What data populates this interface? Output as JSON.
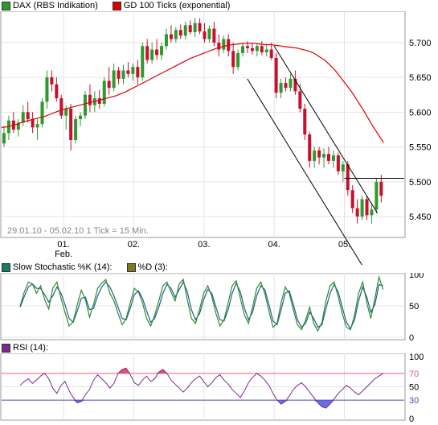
{
  "colors": {
    "up": "#2e9a2e",
    "down": "#c8102e",
    "gd100": "#dd0000",
    "stoch_k": "#2e8b2e",
    "stoch_d": "#1f5f8b",
    "rsi": "#7a2a8a",
    "rsi_upper": "#e06070",
    "rsi_lower": "#4a4ab0",
    "rsi_fill_hi": "#e0305a",
    "rsi_fill_lo": "#5050e0",
    "stoch_k_swatch": "#1a7a6a",
    "stoch_d_swatch": "#7a7a20",
    "rsi_swatch": "#7a2a8a",
    "dax_swatch": "#2e9a2e",
    "gd_swatch": "#dd0000"
  },
  "legend_main": [
    {
      "label": "DAX (RBS Indikation)",
      "color_key": "dax_swatch"
    },
    {
      "label": "GD 100 Ticks (exponential)",
      "color_key": "gd_swatch"
    }
  ],
  "legend_stoch": [
    {
      "label": "Slow Stochastic %K (14):",
      "color_key": "stoch_k_swatch"
    },
    {
      "label": "%D (3):",
      "color_key": "stoch_d_swatch"
    }
  ],
  "legend_rsi": [
    {
      "label": "RSI (14):",
      "color_key": "rsi_swatch"
    }
  ],
  "info_text": "29.01.10 - 05.02.10  1 Tick = 15 Min.",
  "x_labels": [
    {
      "label": "01.",
      "sub": "Feb.",
      "t": 30
    },
    {
      "label": "02.",
      "sub": "",
      "t": 64
    },
    {
      "label": "03.",
      "sub": "",
      "t": 98
    },
    {
      "label": "04.",
      "sub": "",
      "t": 132
    },
    {
      "label": "05.",
      "sub": "",
      "t": 166
    }
  ],
  "chart_data": [
    {
      "type": "candlestick",
      "title": "DAX (RBS Indikation)",
      "series": [
        {
          "name": "DAX (RBS Indikation)",
          "values": [
            [
              5555,
              5580,
              5550,
              5570
            ],
            [
              5570,
              5595,
              5560,
              5588
            ],
            [
              5588,
              5600,
              5570,
              5575
            ],
            [
              5575,
              5590,
              5565,
              5585
            ],
            [
              5585,
              5610,
              5580,
              5600
            ],
            [
              5600,
              5615,
              5585,
              5590
            ],
            [
              5590,
              5600,
              5570,
              5578
            ],
            [
              5578,
              5590,
              5560,
              5583
            ],
            [
              5583,
              5620,
              5578,
              5615
            ],
            [
              5615,
              5660,
              5605,
              5650
            ],
            [
              5650,
              5660,
              5630,
              5640
            ],
            [
              5640,
              5650,
              5615,
              5620
            ],
            [
              5620,
              5625,
              5590,
              5595
            ],
            [
              5595,
              5610,
              5575,
              5605
            ],
            [
              5605,
              5612,
              5545,
              5560
            ],
            [
              5560,
              5595,
              5555,
              5590
            ],
            [
              5590,
              5600,
              5580,
              5595
            ],
            [
              5595,
              5630,
              5590,
              5625
            ],
            [
              5625,
              5640,
              5600,
              5610
            ],
            [
              5610,
              5630,
              5600,
              5620
            ],
            [
              5620,
              5632,
              5605,
              5612
            ],
            [
              5612,
              5650,
              5608,
              5645
            ],
            [
              5645,
              5665,
              5625,
              5635
            ],
            [
              5635,
              5670,
              5630,
              5660
            ],
            [
              5660,
              5665,
              5640,
              5648
            ],
            [
              5648,
              5668,
              5640,
              5660
            ],
            [
              5660,
              5672,
              5650,
              5655
            ],
            [
              5655,
              5670,
              5645,
              5665
            ],
            [
              5665,
              5675,
              5640,
              5650
            ],
            [
              5650,
              5700,
              5645,
              5695
            ],
            [
              5695,
              5705,
              5670,
              5675
            ],
            [
              5675,
              5700,
              5670,
              5690
            ],
            [
              5690,
              5705,
              5675,
              5682
            ],
            [
              5682,
              5700,
              5675,
              5695
            ],
            [
              5695,
              5720,
              5690,
              5712
            ],
            [
              5712,
              5725,
              5700,
              5705
            ],
            [
              5705,
              5722,
              5700,
              5718
            ],
            [
              5718,
              5726,
              5705,
              5710
            ],
            [
              5710,
              5730,
              5705,
              5725
            ],
            [
              5725,
              5732,
              5712,
              5715
            ],
            [
              5715,
              5735,
              5708,
              5728
            ],
            [
              5728,
              5735,
              5712,
              5716
            ],
            [
              5716,
              5728,
              5700,
              5705
            ],
            [
              5705,
              5725,
              5700,
              5720
            ],
            [
              5720,
              5730,
              5695,
              5700
            ],
            [
              5700,
              5712,
              5680,
              5690
            ],
            [
              5690,
              5710,
              5685,
              5705
            ],
            [
              5705,
              5712,
              5680,
              5688
            ],
            [
              5688,
              5700,
              5655,
              5665
            ],
            [
              5665,
              5690,
              5660,
              5685
            ],
            [
              5685,
              5700,
              5680,
              5695
            ],
            [
              5695,
              5702,
              5685,
              5692
            ],
            [
              5692,
              5700,
              5683,
              5688
            ],
            [
              5688,
              5698,
              5680,
              5695
            ],
            [
              5695,
              5702,
              5682,
              5686
            ],
            [
              5686,
              5698,
              5680,
              5690
            ],
            [
              5690,
              5700,
              5675,
              5678
            ],
            [
              5678,
              5685,
              5620,
              5628
            ],
            [
              5628,
              5648,
              5620,
              5642
            ],
            [
              5642,
              5650,
              5630,
              5635
            ],
            [
              5635,
              5655,
              5630,
              5648
            ],
            [
              5648,
              5660,
              5625,
              5630
            ],
            [
              5630,
              5640,
              5600,
              5605
            ],
            [
              5605,
              5612,
              5560,
              5568
            ],
            [
              5568,
              5572,
              5520,
              5530
            ],
            [
              5530,
              5550,
              5520,
              5545
            ],
            [
              5545,
              5550,
              5525,
              5535
            ],
            [
              5535,
              5548,
              5520,
              5540
            ],
            [
              5540,
              5550,
              5525,
              5530
            ],
            [
              5530,
              5545,
              5520,
              5538
            ],
            [
              5538,
              5542,
              5510,
              5515
            ],
            [
              5515,
              5530,
              5500,
              5525
            ],
            [
              5525,
              5530,
              5480,
              5488
            ],
            [
              5488,
              5495,
              5455,
              5462
            ],
            [
              5462,
              5475,
              5440,
              5450
            ],
            [
              5450,
              5480,
              5445,
              5475
            ],
            [
              5475,
              5480,
              5445,
              5452
            ],
            [
              5452,
              5470,
              5440,
              5460
            ],
            [
              5460,
              5505,
              5455,
              5500
            ],
            [
              5500,
              5510,
              5470,
              5480
            ]
          ]
        },
        {
          "name": "GD 100 Ticks (exponential)",
          "values": [
            5578,
            5579,
            5581,
            5583,
            5586,
            5588,
            5590,
            5592,
            5594,
            5597,
            5600,
            5603,
            5605,
            5607,
            5609,
            5611,
            5613,
            5615,
            5617,
            5619,
            5621,
            5623,
            5626,
            5629,
            5633,
            5637,
            5641,
            5645,
            5649,
            5653,
            5657,
            5661,
            5665,
            5669,
            5673,
            5677,
            5680,
            5683,
            5686,
            5689,
            5692,
            5694,
            5696,
            5697,
            5698,
            5699,
            5699,
            5699,
            5698,
            5697,
            5697,
            5696,
            5695,
            5694,
            5693,
            5692,
            5690,
            5688,
            5685,
            5680,
            5675,
            5668,
            5660,
            5650,
            5640,
            5630,
            5618,
            5606,
            5593,
            5580,
            5568,
            5556
          ]
        }
      ],
      "ylim": [
        5420,
        5745
      ],
      "y_ticks": [
        "5.700",
        "5.650",
        "5.600",
        "5.550",
        "5.500",
        "5.450"
      ],
      "y_tick_values": [
        5700,
        5650,
        5600,
        5550,
        5500,
        5450
      ],
      "horizontal_line": 5505,
      "channel_upper": [
        [
          132,
          5695
        ],
        [
          182,
          5455
        ]
      ],
      "channel_lower": [
        [
          119,
          5648
        ],
        [
          185,
          5330
        ]
      ]
    },
    {
      "type": "line",
      "title": "Slow Stochastic %K (14)",
      "series": [
        {
          "name": "Slow Stochastic %K (14):",
          "values": [
            50,
            72,
            88,
            85,
            70,
            82,
            60,
            45,
            78,
            88,
            62,
            40,
            18,
            25,
            52,
            75,
            60,
            32,
            52,
            78,
            86,
            92,
            70,
            58,
            38,
            20,
            30,
            55,
            78,
            72,
            55,
            30,
            18,
            35,
            58,
            82,
            88,
            72,
            58,
            85,
            92,
            60,
            30,
            22,
            45,
            70,
            82,
            65,
            38,
            18,
            28,
            55,
            82,
            90,
            62,
            35,
            22,
            48,
            78,
            88,
            70,
            42,
            16,
            22,
            55,
            80,
            70,
            44,
            20,
            12,
            28,
            48,
            22,
            10,
            24,
            58,
            82,
            88,
            64,
            38,
            16,
            12,
            35,
            70,
            88,
            55,
            30,
            62,
            96,
            76
          ]
        },
        {
          "name": "%D (3):",
          "values": [
            48,
            65,
            80,
            85,
            78,
            78,
            68,
            56,
            66,
            80,
            70,
            52,
            30,
            24,
            42,
            62,
            64,
            44,
            46,
            66,
            80,
            88,
            80,
            66,
            48,
            30,
            28,
            46,
            68,
            74,
            62,
            42,
            24,
            30,
            48,
            70,
            84,
            78,
            64,
            76,
            88,
            72,
            44,
            28,
            38,
            60,
            76,
            70,
            48,
            28,
            26,
            44,
            70,
            86,
            72,
            46,
            28,
            40,
            66,
            82,
            76,
            52,
            26,
            20,
            44,
            70,
            74,
            52,
            28,
            16,
            22,
            40,
            30,
            16,
            20,
            46,
            70,
            84,
            72,
            48,
            24,
            14,
            28,
            58,
            80,
            64,
            40,
            52,
            84,
            82
          ]
        }
      ],
      "ylim": [
        0,
        100
      ],
      "y_ticks": [
        "100",
        "50",
        "0"
      ],
      "y_tick_values": [
        100,
        50,
        0
      ]
    },
    {
      "type": "line",
      "title": "RSI (14)",
      "series": [
        {
          "name": "RSI (14):",
          "values": [
            52,
            58,
            62,
            55,
            60,
            66,
            70,
            62,
            48,
            40,
            52,
            58,
            44,
            34,
            26,
            28,
            38,
            46,
            60,
            68,
            62,
            56,
            48,
            55,
            70,
            76,
            78,
            68,
            56,
            52,
            60,
            66,
            58,
            62,
            72,
            76,
            70,
            60,
            54,
            48,
            42,
            48,
            56,
            62,
            66,
            58,
            50,
            56,
            64,
            68,
            60,
            54,
            46,
            40,
            34,
            44,
            56,
            64,
            70,
            66,
            60,
            52,
            40,
            30,
            24,
            28,
            36,
            46,
            52,
            56,
            50,
            42,
            34,
            26,
            20,
            18,
            24,
            32,
            40,
            46,
            52,
            48,
            42,
            38,
            44,
            50,
            56,
            62,
            66,
            70
          ]
        }
      ],
      "ylim": [
        0,
        100
      ],
      "y_ticks": [
        "100",
        "70",
        "50",
        "30",
        "0"
      ],
      "y_tick_values": [
        100,
        70,
        50,
        30,
        0
      ],
      "upper_band": 70,
      "lower_band": 30
    }
  ]
}
